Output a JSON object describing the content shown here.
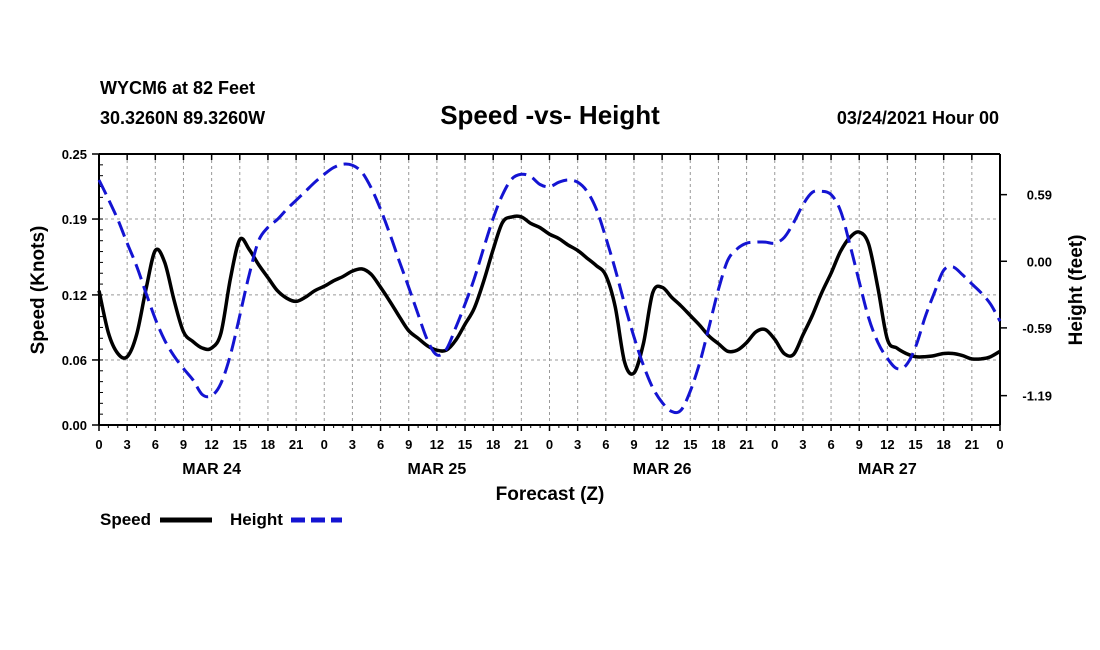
{
  "header": {
    "station": "WYCM6 at 82 Feet",
    "coords": "30.3260N 89.3260W",
    "title": "Speed -vs- Height",
    "datetime": "03/24/2021 Hour 00"
  },
  "legend": {
    "speed_label": "Speed",
    "height_label": "Height"
  },
  "colors": {
    "speed": "#000000",
    "height": "#1414d2",
    "grid": "#999999"
  },
  "chart_data": {
    "type": "line",
    "title": "Speed -vs- Height",
    "xlabel": "Forecast (Z)",
    "ylabel": "Speed (Knots)",
    "y2label": "Height (feet)",
    "xlim": [
      0,
      96
    ],
    "ylim": [
      0,
      0.25
    ],
    "y2lim": [
      -1.45,
      0.95
    ],
    "x_ticks": [
      0,
      3,
      6,
      9,
      12,
      15,
      18,
      21,
      24,
      27,
      30,
      33,
      36,
      39,
      42,
      45,
      48,
      51,
      54,
      57,
      60,
      63,
      66,
      69,
      72,
      75,
      78,
      81,
      84,
      87,
      90,
      93,
      96
    ],
    "x_tick_labels": [
      "0",
      "3",
      "6",
      "9",
      "12",
      "15",
      "18",
      "21",
      "0",
      "3",
      "6",
      "9",
      "12",
      "15",
      "18",
      "21",
      "0",
      "3",
      "6",
      "9",
      "12",
      "15",
      "18",
      "21",
      "0",
      "3",
      "6",
      "9",
      "12",
      "15",
      "18",
      "21",
      "0"
    ],
    "date_labels": [
      {
        "label": "MAR 24",
        "x": 12
      },
      {
        "label": "MAR 25",
        "x": 36
      },
      {
        "label": "MAR 26",
        "x": 60
      },
      {
        "label": "MAR 27",
        "x": 84
      }
    ],
    "y_ticks": [
      0.0,
      0.06,
      0.12,
      0.19,
      0.25
    ],
    "y_tick_labels": [
      "0.00",
      "0.06",
      "0.12",
      "0.19",
      "0.25"
    ],
    "y2_ticks": [
      -1.19,
      -0.59,
      0.0,
      0.59
    ],
    "y2_tick_labels": [
      "-1.19",
      "-0.59",
      "0.00",
      "0.59"
    ],
    "grid": true,
    "series": [
      {
        "name": "Speed",
        "axis": "left",
        "x": [
          0,
          1,
          2,
          3,
          4,
          5,
          6,
          7,
          8,
          9,
          10,
          11,
          12,
          13,
          14,
          15,
          16,
          17,
          18,
          19,
          20,
          21,
          22,
          23,
          24,
          25,
          26,
          27,
          28,
          29,
          30,
          31,
          32,
          33,
          34,
          35,
          36,
          37,
          38,
          39,
          40,
          41,
          42,
          43,
          44,
          45,
          46,
          47,
          48,
          49,
          50,
          51,
          52,
          53,
          54,
          55,
          56,
          57,
          58,
          59,
          60,
          61,
          62,
          63,
          64,
          65,
          66,
          67,
          68,
          69,
          70,
          71,
          72,
          73,
          74,
          75,
          76,
          77,
          78,
          79,
          80,
          81,
          82,
          83,
          84,
          85,
          86,
          87,
          88,
          89,
          90,
          91,
          92,
          93,
          94,
          95,
          96
        ],
        "values": [
          0.124,
          0.085,
          0.066,
          0.063,
          0.083,
          0.125,
          0.161,
          0.15,
          0.115,
          0.086,
          0.077,
          0.071,
          0.071,
          0.085,
          0.135,
          0.171,
          0.162,
          0.148,
          0.136,
          0.124,
          0.117,
          0.114,
          0.118,
          0.124,
          0.128,
          0.133,
          0.137,
          0.142,
          0.144,
          0.139,
          0.127,
          0.114,
          0.1,
          0.087,
          0.08,
          0.073,
          0.069,
          0.069,
          0.078,
          0.093,
          0.108,
          0.133,
          0.162,
          0.187,
          0.192,
          0.192,
          0.186,
          0.182,
          0.176,
          0.172,
          0.166,
          0.161,
          0.154,
          0.147,
          0.138,
          0.109,
          0.058,
          0.048,
          0.075,
          0.122,
          0.127,
          0.118,
          0.11,
          0.101,
          0.092,
          0.082,
          0.075,
          0.068,
          0.069,
          0.076,
          0.086,
          0.088,
          0.079,
          0.066,
          0.065,
          0.083,
          0.101,
          0.122,
          0.14,
          0.16,
          0.173,
          0.178,
          0.167,
          0.126,
          0.079,
          0.071,
          0.066,
          0.063,
          0.063,
          0.064,
          0.066,
          0.066,
          0.064,
          0.061,
          0.061,
          0.063,
          0.068
        ]
      },
      {
        "name": "Height",
        "axis": "right",
        "x": [
          0,
          1,
          2,
          3,
          4,
          5,
          6,
          7,
          8,
          9,
          10,
          11,
          12,
          13,
          14,
          15,
          16,
          17,
          18,
          19,
          20,
          21,
          22,
          23,
          24,
          25,
          26,
          27,
          28,
          29,
          30,
          31,
          32,
          33,
          34,
          35,
          36,
          37,
          38,
          39,
          40,
          41,
          42,
          43,
          44,
          45,
          46,
          47,
          48,
          49,
          50,
          51,
          52,
          53,
          54,
          55,
          56,
          57,
          58,
          59,
          60,
          61,
          62,
          63,
          64,
          65,
          66,
          67,
          68,
          69,
          70,
          71,
          72,
          73,
          74,
          75,
          76,
          77,
          78,
          79,
          80,
          81,
          82,
          83,
          84,
          85,
          86,
          87,
          88,
          89,
          90,
          91,
          92,
          93,
          94,
          95,
          96
        ],
        "values": [
          0.72,
          0.55,
          0.37,
          0.16,
          -0.04,
          -0.28,
          -0.51,
          -0.7,
          -0.84,
          -0.95,
          -1.05,
          -1.18,
          -1.19,
          -1.08,
          -0.83,
          -0.48,
          -0.12,
          0.18,
          0.3,
          0.37,
          0.46,
          0.54,
          0.62,
          0.7,
          0.77,
          0.83,
          0.86,
          0.85,
          0.79,
          0.65,
          0.46,
          0.24,
          0.0,
          -0.23,
          -0.47,
          -0.7,
          -0.83,
          -0.78,
          -0.59,
          -0.38,
          -0.15,
          0.12,
          0.38,
          0.59,
          0.73,
          0.77,
          0.75,
          0.68,
          0.66,
          0.7,
          0.72,
          0.7,
          0.62,
          0.46,
          0.21,
          -0.07,
          -0.38,
          -0.67,
          -0.92,
          -1.12,
          -1.25,
          -1.33,
          -1.32,
          -1.15,
          -0.9,
          -0.58,
          -0.25,
          0.01,
          0.11,
          0.16,
          0.17,
          0.17,
          0.16,
          0.21,
          0.34,
          0.5,
          0.61,
          0.62,
          0.59,
          0.45,
          0.15,
          -0.18,
          -0.5,
          -0.72,
          -0.86,
          -0.95,
          -0.92,
          -0.76,
          -0.5,
          -0.28,
          -0.08,
          -0.05,
          -0.12,
          -0.2,
          -0.28,
          -0.38,
          -0.53
        ]
      }
    ]
  }
}
